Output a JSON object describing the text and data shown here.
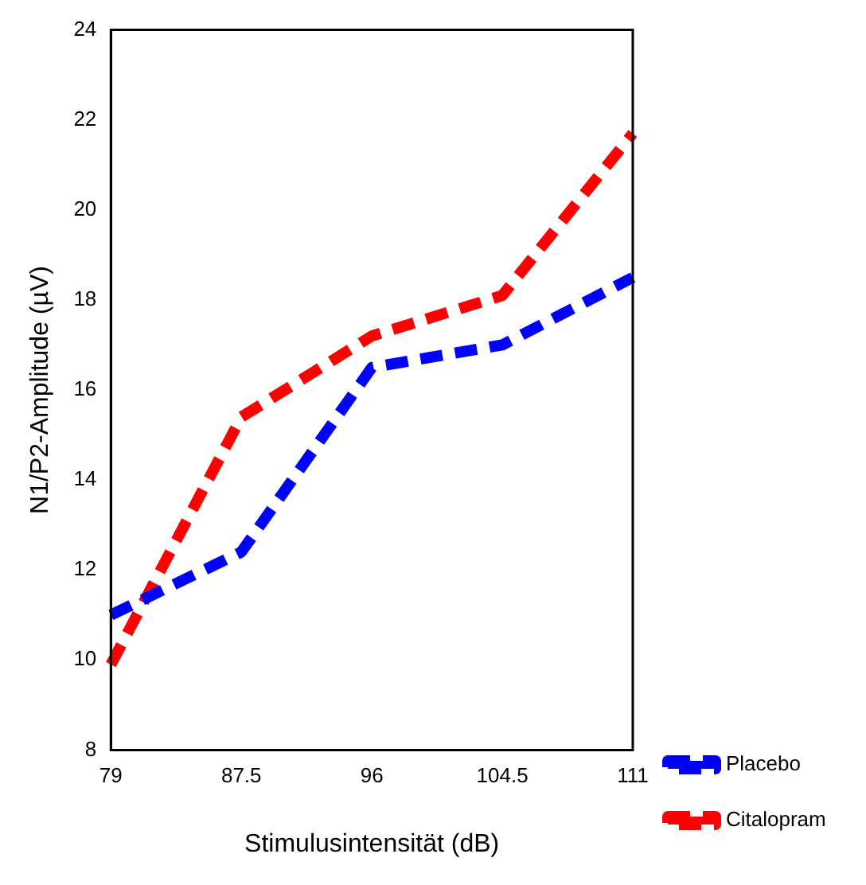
{
  "chart_data": {
    "type": "line",
    "xlabel": "Stimulusintensität (dB)",
    "ylabel": "N1/P2-Amplitude (µV)",
    "categories": [
      "79",
      "87.5",
      "96",
      "104.5",
      "111"
    ],
    "series": [
      {
        "name": "Placebo",
        "color": "#0000ff",
        "values": [
          11.0,
          12.4,
          16.5,
          17.0,
          18.5
        ],
        "line_style": "dashed"
      },
      {
        "name": "Citalopram",
        "color": "#ff0000",
        "values": [
          9.9,
          15.4,
          17.2,
          18.1,
          21.7
        ],
        "line_style": "dashed"
      }
    ],
    "ylim": [
      8,
      24
    ],
    "yticks": [
      8,
      10,
      12,
      14,
      16,
      18,
      20,
      22,
      24
    ],
    "grid": false,
    "legend": "bottom right",
    "marker": "none"
  }
}
